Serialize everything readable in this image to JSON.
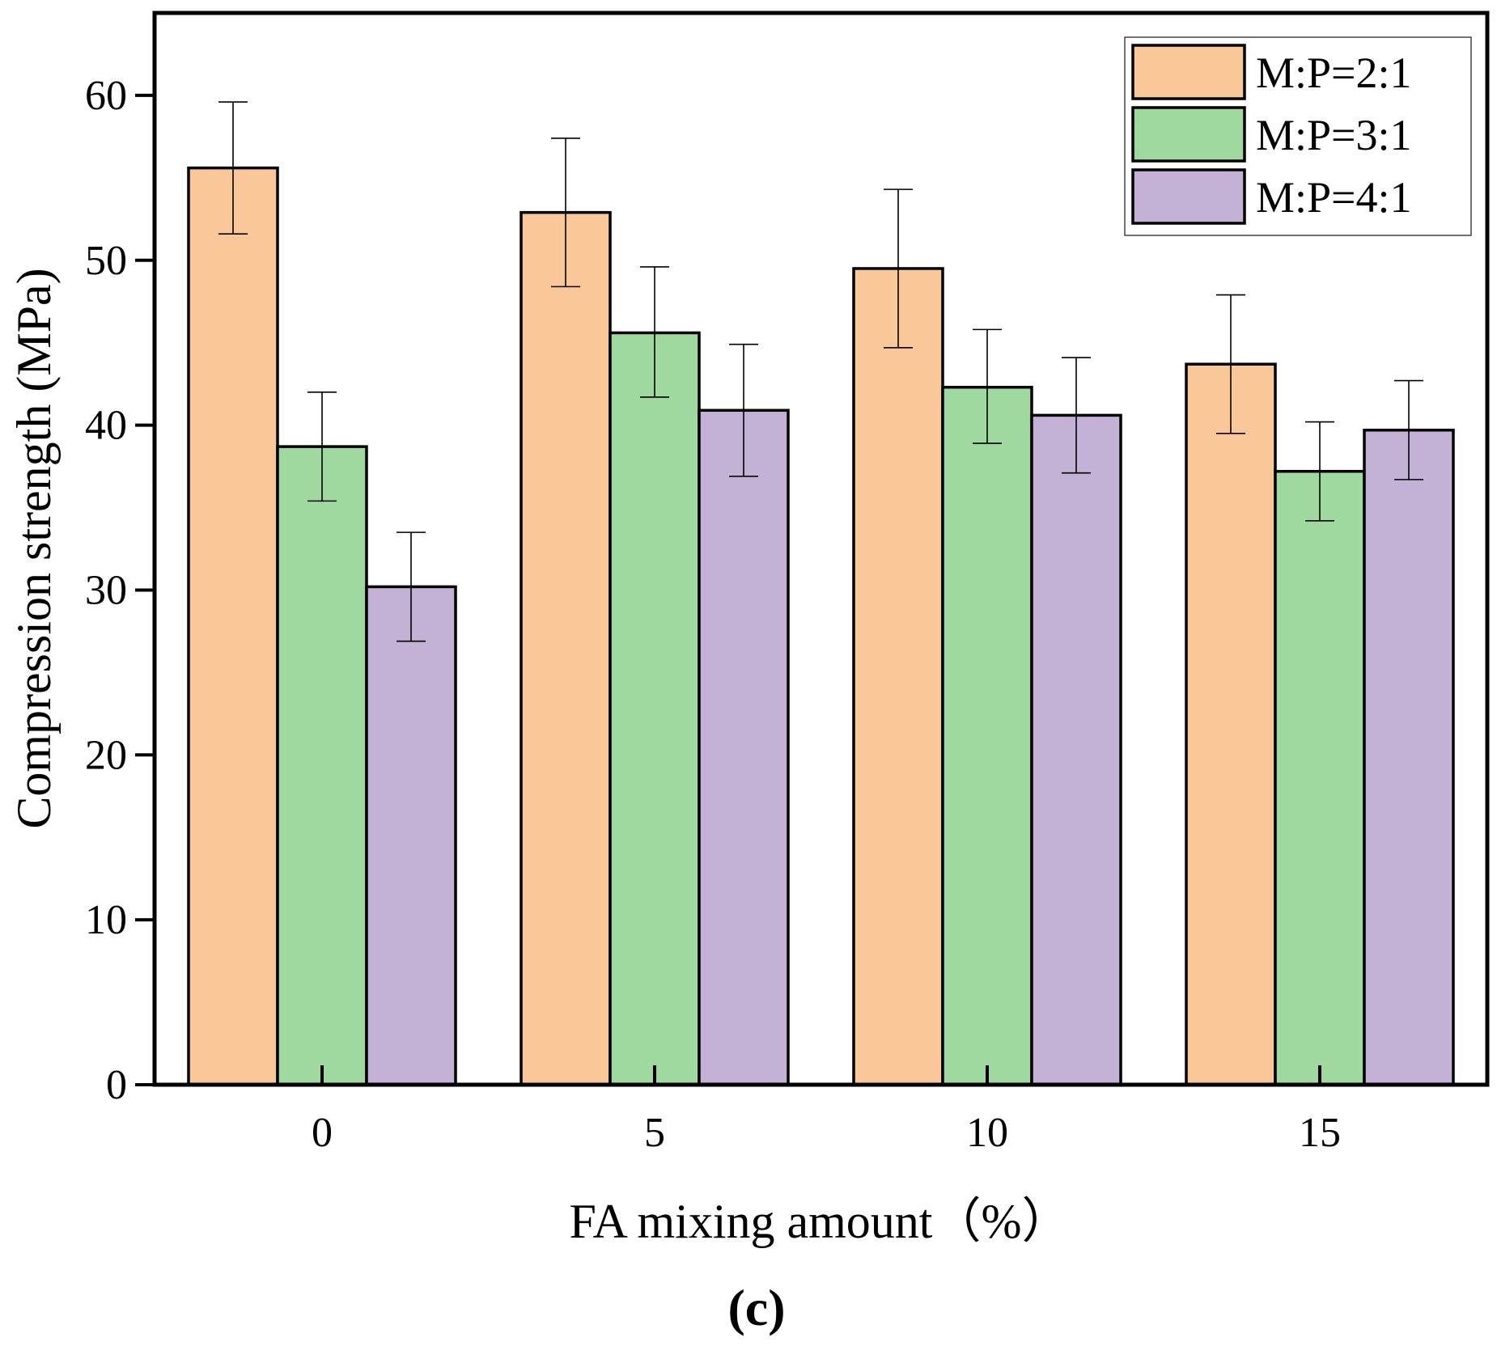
{
  "chart_data": {
    "type": "bar",
    "title": "",
    "xlabel": "FA mixing amount（%）",
    "ylabel": "Compression strength (MPa)",
    "panel_label": "(c)",
    "categories": [
      "0",
      "5",
      "10",
      "15"
    ],
    "ylim": [
      0,
      65
    ],
    "yticks": [
      0,
      10,
      20,
      30,
      40,
      50,
      60
    ],
    "ytick_labels": [
      "0",
      "10",
      "20",
      "30",
      "40",
      "50",
      "60"
    ],
    "grid": false,
    "legend_position": "top-right",
    "series": [
      {
        "name": "M:P=2:1",
        "color": "#fac898",
        "values": [
          55.6,
          52.9,
          49.5,
          43.7
        ],
        "error_low": [
          51.6,
          48.4,
          44.7,
          39.5
        ],
        "error_high": [
          59.6,
          57.4,
          54.3,
          47.9
        ]
      },
      {
        "name": "M:P=3:1",
        "color": "#9fd99f",
        "values": [
          38.7,
          45.6,
          42.3,
          37.2
        ],
        "error_low": [
          35.4,
          41.7,
          38.9,
          34.2
        ],
        "error_high": [
          42.0,
          49.6,
          45.8,
          40.2
        ]
      },
      {
        "name": "M:P=4:1",
        "color": "#c3b1d6",
        "values": [
          30.2,
          40.9,
          40.6,
          39.7
        ],
        "error_low": [
          26.9,
          36.9,
          37.1,
          36.7
        ],
        "error_high": [
          33.5,
          44.9,
          44.1,
          42.7
        ]
      }
    ]
  }
}
